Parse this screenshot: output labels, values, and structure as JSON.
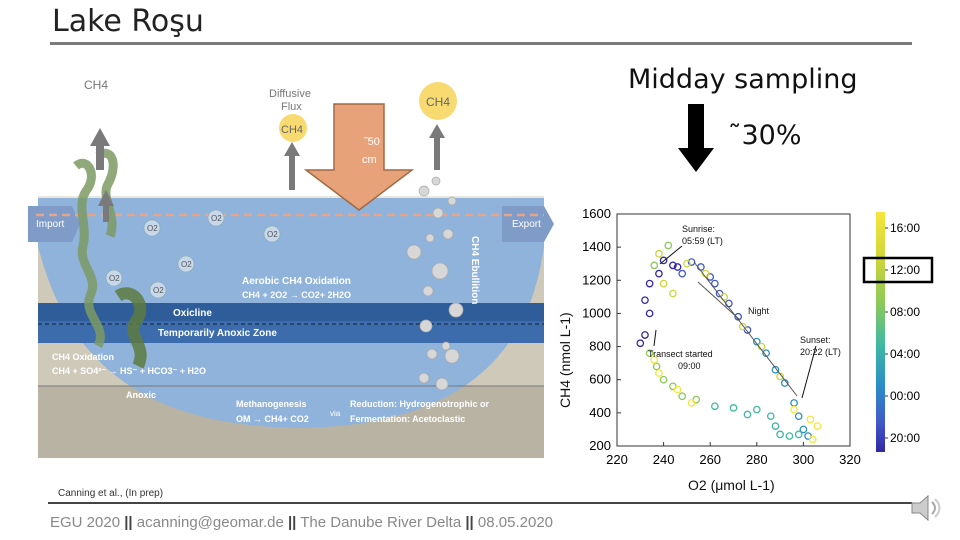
{
  "slide": {
    "title": "Lake Roşu",
    "heading": "Midday sampling",
    "percent": "˜30%",
    "citation": "Canning et al., (In prep)",
    "footer": [
      "EGU 2020 ",
      " acanning@geomar.de ",
      " The Danube River Delta ",
      " 08.05.2020"
    ],
    "footer_separator": "||"
  },
  "diagram": {
    "ch4_left": "CH4",
    "diffusive_flux": [
      "Diffusive",
      "Flux"
    ],
    "ch4_flux": "CH4",
    "ch4_right": "CH4",
    "depth": [
      "˜50",
      "cm"
    ],
    "import": "Import",
    "export": "Export",
    "ebullition": "CH4 Ebullition",
    "o2_labels": [
      "O2",
      "O2",
      "O2",
      "O2",
      "O2",
      "O2"
    ],
    "aerobic_title": "Aerobic CH4 Oxidation",
    "aerobic_eq": "CH4 + 2O2 → CO2+ 2H2O",
    "oxicline": "Oxicline",
    "anoxic_zone": "Temporarily Anoxic Zone",
    "ch4_oxidation_title": "CH4 Oxidation",
    "ch4_oxidation_eq": "CH4 + SO4²⁻ → HS⁻ + HCO3⁻ + H2O",
    "anoxic": "Anoxic",
    "methanogenesis_title": "Methanogenesis",
    "methanogenesis_eq": "OM → CH4+ CO2",
    "via": "via",
    "reduction_title": "Reduction: Hydrogenotrophic  or",
    "fermentation": "Fermentation: Acetoclastic",
    "colors": {
      "water": "#8fb3da",
      "oxicline": "#2f5d9a",
      "sediment": "#c9c3b4",
      "arrow": "#e8a27a"
    }
  },
  "chart_data": {
    "type": "scatter",
    "xlabel": "O2 (μmol L-1)",
    "ylabel": "CH4 (nmol L-1)",
    "xlim": [
      220,
      320
    ],
    "ylim": [
      200,
      1600
    ],
    "xticks": [
      220,
      240,
      260,
      280,
      300,
      320
    ],
    "yticks": [
      200,
      400,
      600,
      800,
      1000,
      1200,
      1400,
      1600
    ],
    "series": [
      {
        "values": [
          [
            230,
            820
          ],
          [
            232,
            870
          ],
          [
            234,
            1000
          ],
          [
            232,
            1080
          ],
          [
            234,
            1180
          ],
          [
            238,
            1240
          ],
          [
            240,
            1320
          ],
          [
            244,
            1290
          ],
          [
            246,
            1280
          ],
          [
            248,
            1240
          ],
          [
            252,
            1310
          ],
          [
            256,
            1280
          ],
          [
            260,
            1220
          ],
          [
            262,
            1180
          ],
          [
            264,
            1120
          ],
          [
            268,
            1060
          ],
          [
            272,
            980
          ],
          [
            276,
            900
          ],
          [
            280,
            830
          ],
          [
            284,
            760
          ],
          [
            288,
            660
          ],
          [
            292,
            580
          ],
          [
            296,
            460
          ],
          [
            298,
            380
          ],
          [
            300,
            300
          ],
          [
            302,
            260
          ],
          [
            298,
            270
          ],
          [
            294,
            260
          ],
          [
            290,
            270
          ],
          [
            288,
            320
          ],
          [
            286,
            380
          ],
          [
            280,
            420
          ],
          [
            276,
            390
          ],
          [
            270,
            430
          ],
          [
            262,
            440
          ],
          [
            254,
            480
          ],
          [
            248,
            500
          ],
          [
            244,
            560
          ],
          [
            240,
            600
          ],
          [
            237,
            680
          ],
          [
            234,
            760
          ],
          [
            242,
            1410
          ],
          [
            236,
            1290
          ],
          [
            238,
            1360
          ],
          [
            240,
            1180
          ],
          [
            244,
            1120
          ],
          [
            250,
            1300
          ],
          [
            258,
            1240
          ],
          [
            266,
            1100
          ],
          [
            274,
            920
          ],
          [
            282,
            800
          ],
          [
            290,
            620
          ],
          [
            296,
            420
          ],
          [
            304,
            240
          ],
          [
            306,
            320
          ],
          [
            303,
            360
          ],
          [
            246,
            540
          ],
          [
            252,
            460
          ],
          [
            238,
            640
          ],
          [
            236,
            720
          ]
        ]
      }
    ],
    "time_colors": [
      "#f6e63c",
      "#cdd53a",
      "#8bc95a",
      "#3fb9a2",
      "#2b8fc6",
      "#4058c9",
      "#3327a6"
    ],
    "annotations": {
      "sunrise": [
        "Sunrise:",
        "05:59 (LT)"
      ],
      "night": "Night",
      "transect": [
        "Transect started",
        "09:00"
      ],
      "sunset": [
        "Sunset:",
        "20:22 (LT)"
      ]
    },
    "colorbar_ticks": [
      "16:00",
      "12:00",
      "08:00",
      "04:00",
      "00:00",
      "20:00"
    ],
    "highlighted_tick": "12:00"
  }
}
